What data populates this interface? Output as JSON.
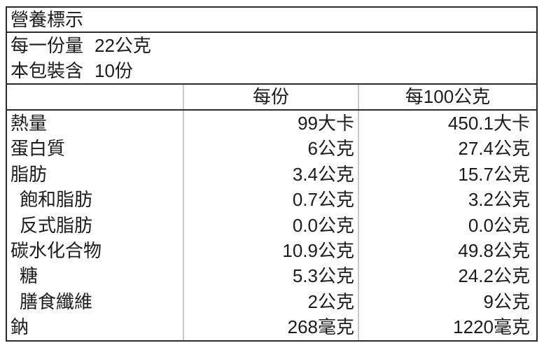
{
  "label": {
    "title": "營養標示",
    "serving_size": {
      "label": "每一份量",
      "value": "22公克"
    },
    "servings_per_package": {
      "label": "本包裝含",
      "value": "10份"
    },
    "columns": {
      "nutrient": "",
      "per_serving": "每份",
      "per_100g": "每100公克"
    },
    "rows": [
      {
        "name": "熱量",
        "indent": false,
        "per_serving": "99大卡",
        "per_100g": "450.1大卡"
      },
      {
        "name": "蛋白質",
        "indent": false,
        "per_serving": "6公克",
        "per_100g": "27.4公克"
      },
      {
        "name": "脂肪",
        "indent": false,
        "per_serving": "3.4公克",
        "per_100g": "15.7公克"
      },
      {
        "name": "飽和脂肪",
        "indent": true,
        "per_serving": "0.7公克",
        "per_100g": "3.2公克"
      },
      {
        "name": "反式脂肪",
        "indent": true,
        "per_serving": "0.0公克",
        "per_100g": "0.0公克"
      },
      {
        "name": "碳水化合物",
        "indent": false,
        "per_serving": "10.9公克",
        "per_100g": "49.8公克"
      },
      {
        "name": "糖",
        "indent": true,
        "per_serving": "5.3公克",
        "per_100g": "24.2公克"
      },
      {
        "name": "膳食纖維",
        "indent": true,
        "per_serving": "2公克",
        "per_100g": "9公克"
      },
      {
        "name": "鈉",
        "indent": false,
        "per_serving": "268毫克",
        "per_100g": "1220毫克"
      }
    ],
    "colors": {
      "border_dark": "#2b2b2b",
      "divider_light": "#c9c9c9",
      "text": "#1c1c1c",
      "background": "#ffffff"
    }
  }
}
